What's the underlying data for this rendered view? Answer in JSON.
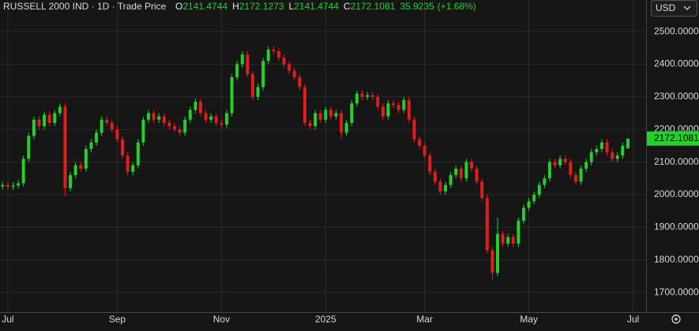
{
  "chart_data": {
    "type": "candlestick",
    "title": "RUSSELL 2000 IND · 1D · Trade Price",
    "ohlc_labels": [
      "O",
      "H",
      "L",
      "C"
    ],
    "change": 35.9235,
    "change_label": "(+1.68%)",
    "currency": "USD",
    "up_color": "#22d12a",
    "down_color": "#e51c1c",
    "grid": true,
    "xlim": [
      -0.5,
      123.5
    ],
    "xticks": [
      {
        "value": 1,
        "label": "Jul"
      },
      {
        "value": 22,
        "label": "Sep"
      },
      {
        "value": 42,
        "label": "Nov"
      },
      {
        "value": 62,
        "label": "2025"
      },
      {
        "value": 81,
        "label": "Mar"
      },
      {
        "value": 101,
        "label": "May"
      },
      {
        "value": 121,
        "label": "Jul"
      }
    ],
    "ylim": [
      1640,
      2597
    ],
    "yticks": [
      {
        "value": 1700,
        "label": "1700.0000"
      },
      {
        "value": 1800,
        "label": "1800.0000"
      },
      {
        "value": 1900,
        "label": "1900.0000"
      },
      {
        "value": 2000,
        "label": "2000.0000"
      },
      {
        "value": 2100,
        "label": "2100.0000"
      },
      {
        "value": 2200,
        "label": "2200.0000"
      },
      {
        "value": 2300,
        "label": "2300.0000"
      },
      {
        "value": 2400,
        "label": "2400.0000"
      },
      {
        "value": 2500,
        "label": "2500.0000"
      }
    ],
    "open": [
      2025,
      2030,
      2025,
      2028,
      2035,
      2110,
      2180,
      2230,
      2210,
      2245,
      2220,
      2250,
      2270,
      2020,
      2060,
      2090,
      2080,
      2140,
      2160,
      2190,
      2230,
      2220,
      2200,
      2170,
      2120,
      2070,
      2090,
      2160,
      2230,
      2250,
      2230,
      2240,
      2220,
      2210,
      2200,
      2190,
      2230,
      2260,
      2285,
      2250,
      2230,
      2240,
      2220,
      2215,
      2250,
      2360,
      2400,
      2430,
      2370,
      2300,
      2330,
      2410,
      2445,
      2440,
      2420,
      2400,
      2380,
      2360,
      2330,
      2220,
      2210,
      2250,
      2230,
      2260,
      2240,
      2250,
      2190,
      2220,
      2280,
      2310,
      2300,
      2305,
      2300,
      2270,
      2240,
      2280,
      2275,
      2260,
      2290,
      2230,
      2170,
      2150,
      2120,
      2070,
      2040,
      2010,
      2030,
      2060,
      2080,
      2050,
      2100,
      2080,
      2040,
      1990,
      1830,
      1760,
      1880,
      1850,
      1870,
      1850,
      1920,
      1960,
      1980,
      2000,
      2030,
      2050,
      2100,
      2090,
      2110,
      2100,
      2060,
      2040,
      2080,
      2100,
      2130,
      2140,
      2160,
      2130,
      2110,
      2120,
      2141.4744
    ],
    "high": [
      2040,
      2040,
      2038,
      2045,
      2120,
      2190,
      2240,
      2240,
      2255,
      2255,
      2260,
      2280,
      2280,
      2070,
      2100,
      2100,
      2150,
      2170,
      2200,
      2240,
      2240,
      2230,
      2210,
      2180,
      2130,
      2100,
      2170,
      2240,
      2260,
      2260,
      2250,
      2250,
      2230,
      2220,
      2210,
      2240,
      2270,
      2295,
      2295,
      2260,
      2250,
      2250,
      2230,
      2260,
      2370,
      2410,
      2440,
      2440,
      2380,
      2340,
      2420,
      2455,
      2455,
      2450,
      2430,
      2410,
      2390,
      2370,
      2340,
      2230,
      2260,
      2260,
      2270,
      2270,
      2260,
      2260,
      2230,
      2290,
      2320,
      2320,
      2315,
      2315,
      2310,
      2280,
      2290,
      2290,
      2285,
      2300,
      2300,
      2240,
      2180,
      2160,
      2130,
      2080,
      2050,
      2040,
      2070,
      2090,
      2090,
      2110,
      2110,
      2090,
      2050,
      2000,
      1840,
      1930,
      1890,
      1880,
      1880,
      1930,
      1970,
      1990,
      2010,
      2040,
      2060,
      2110,
      2110,
      2120,
      2120,
      2110,
      2070,
      2090,
      2110,
      2140,
      2150,
      2170,
      2170,
      2140,
      2130,
      2160,
      2172.1273
    ],
    "low": [
      2015,
      2015,
      2015,
      2018,
      2025,
      2100,
      2170,
      2200,
      2200,
      2210,
      2210,
      2240,
      1995,
      2010,
      2050,
      2070,
      2070,
      2130,
      2150,
      2180,
      2210,
      2190,
      2160,
      2110,
      2060,
      2060,
      2080,
      2150,
      2220,
      2220,
      2220,
      2210,
      2200,
      2190,
      2180,
      2180,
      2220,
      2250,
      2240,
      2220,
      2220,
      2210,
      2205,
      2205,
      2240,
      2350,
      2390,
      2360,
      2290,
      2290,
      2320,
      2400,
      2430,
      2410,
      2390,
      2370,
      2350,
      2320,
      2210,
      2200,
      2200,
      2220,
      2220,
      2230,
      2230,
      2170,
      2180,
      2210,
      2270,
      2290,
      2290,
      2290,
      2260,
      2230,
      2230,
      2265,
      2250,
      2250,
      2220,
      2160,
      2140,
      2110,
      2060,
      2030,
      2000,
      2000,
      2020,
      2050,
      2040,
      2040,
      2070,
      2030,
      1980,
      1820,
      1740,
      1750,
      1840,
      1840,
      1840,
      1840,
      1910,
      1950,
      1970,
      1990,
      2020,
      2040,
      2080,
      2080,
      2090,
      2050,
      2030,
      2030,
      2070,
      2090,
      2120,
      2130,
      2120,
      2100,
      2100,
      2110,
      2141.4744
    ],
    "close": [
      2030,
      2025,
      2028,
      2035,
      2110,
      2180,
      2230,
      2210,
      2245,
      2220,
      2250,
      2270,
      2020,
      2060,
      2090,
      2080,
      2140,
      2160,
      2190,
      2230,
      2220,
      2200,
      2170,
      2120,
      2070,
      2090,
      2160,
      2230,
      2250,
      2230,
      2240,
      2220,
      2210,
      2200,
      2190,
      2230,
      2260,
      2285,
      2250,
      2230,
      2240,
      2220,
      2215,
      2250,
      2360,
      2400,
      2430,
      2370,
      2300,
      2330,
      2410,
      2445,
      2440,
      2420,
      2400,
      2380,
      2360,
      2330,
      2220,
      2210,
      2250,
      2230,
      2260,
      2240,
      2250,
      2190,
      2220,
      2280,
      2310,
      2300,
      2305,
      2300,
      2270,
      2240,
      2280,
      2275,
      2260,
      2290,
      2230,
      2170,
      2150,
      2120,
      2070,
      2040,
      2010,
      2030,
      2060,
      2080,
      2050,
      2100,
      2080,
      2040,
      1990,
      1830,
      1760,
      1880,
      1850,
      1870,
      1850,
      1920,
      1960,
      1980,
      2000,
      2030,
      2050,
      2100,
      2090,
      2110,
      2100,
      2060,
      2040,
      2080,
      2100,
      2130,
      2140,
      2160,
      2130,
      2110,
      2120,
      2150,
      2172.1081
    ]
  }
}
